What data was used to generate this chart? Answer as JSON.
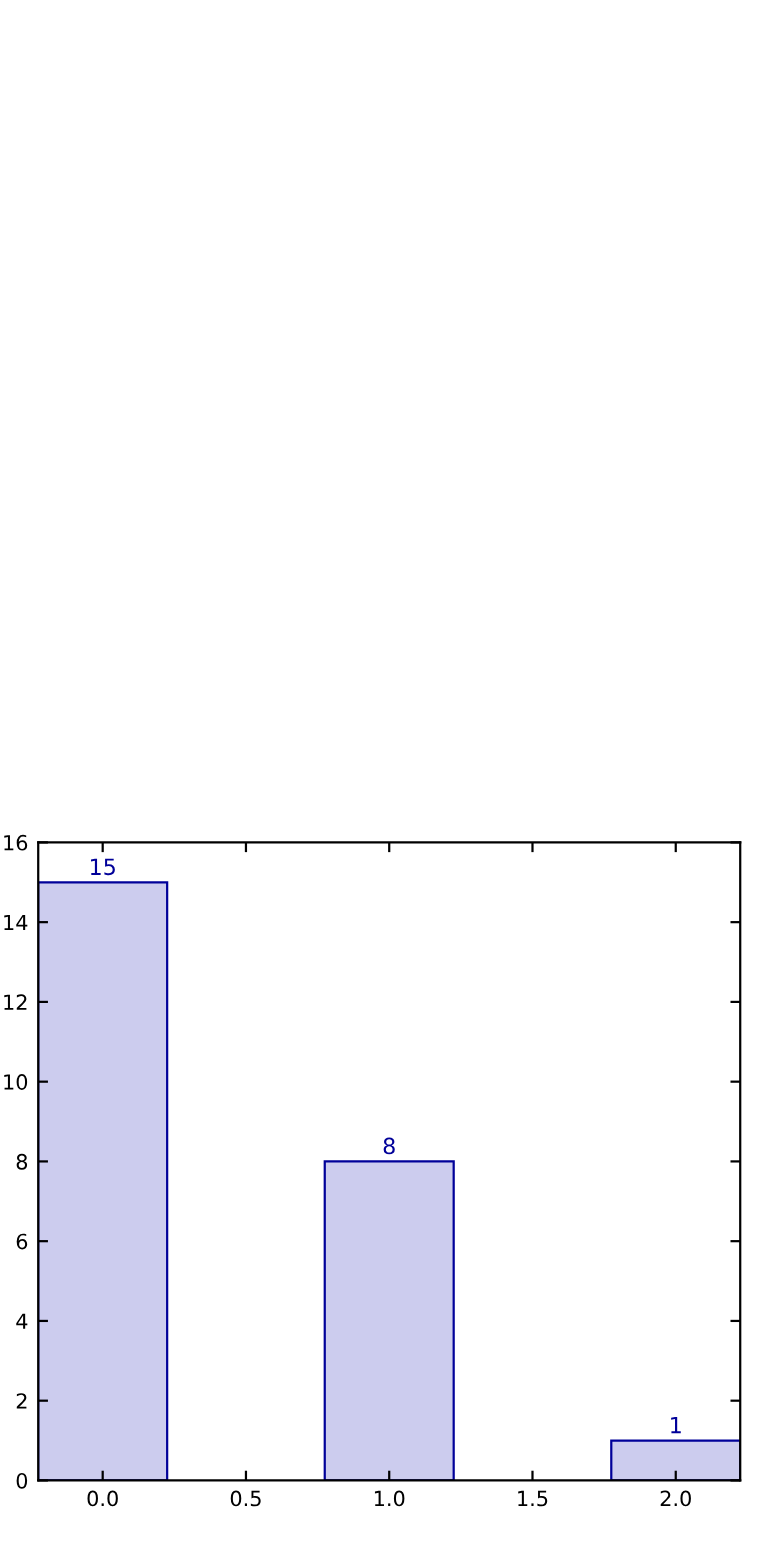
{
  "chart_data": {
    "type": "bar",
    "x": [
      0,
      1,
      2
    ],
    "values": [
      15,
      8,
      1
    ],
    "color": "#ccccee",
    "data_labels": true,
    "xlim": [
      -0.225,
      2.225
    ],
    "xticks": [
      {
        "value": 0,
        "label": "0.0"
      },
      {
        "value": 0.5,
        "label": "0.5"
      },
      {
        "value": 1,
        "label": "1.0"
      },
      {
        "value": 1.5,
        "label": "1.5"
      },
      {
        "value": 2,
        "label": "2.0"
      }
    ],
    "ylim": [
      0,
      16
    ],
    "yticks": [
      0,
      2,
      4,
      6,
      8,
      10,
      12,
      14,
      16
    ],
    "grid": false
  }
}
